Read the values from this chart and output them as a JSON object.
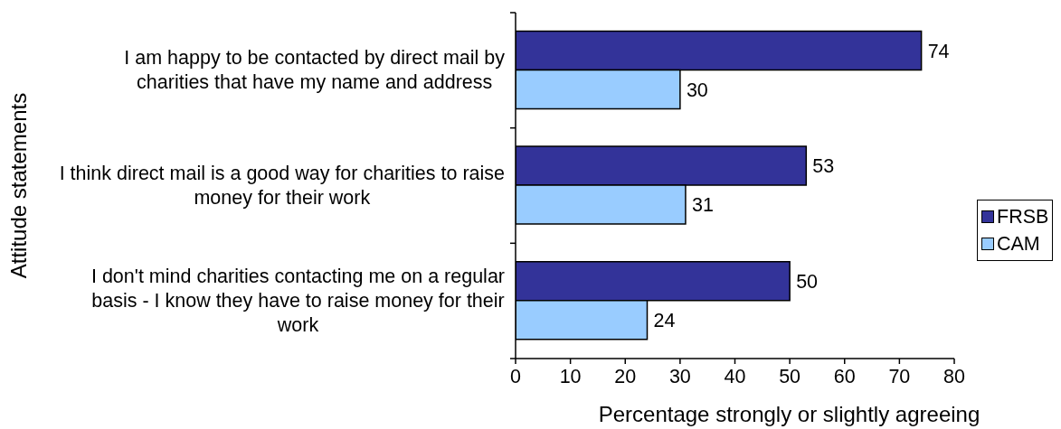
{
  "chart_data": {
    "type": "bar",
    "orientation": "horizontal",
    "xlabel": "Percentage strongly or slightly agreeing",
    "ylabel": "Attitude statements",
    "categories": [
      "I am happy to be contacted by direct mail by charities that have my name and address",
      "I think direct mail is a good way for charities to raise money for their work",
      "I don't mind charities contacting me on a regular basis - I know they have to raise money for their work"
    ],
    "series": [
      {
        "name": "FRSB",
        "color": "#333399",
        "values": [
          74,
          53,
          50
        ]
      },
      {
        "name": "CAM",
        "color": "#99ccff",
        "values": [
          30,
          31,
          24
        ]
      }
    ],
    "xlim": [
      0,
      80
    ],
    "xticks": [
      0,
      10,
      20,
      30,
      40,
      50,
      60,
      70,
      80
    ],
    "data_labels": true,
    "legend": "right",
    "grid": false
  }
}
